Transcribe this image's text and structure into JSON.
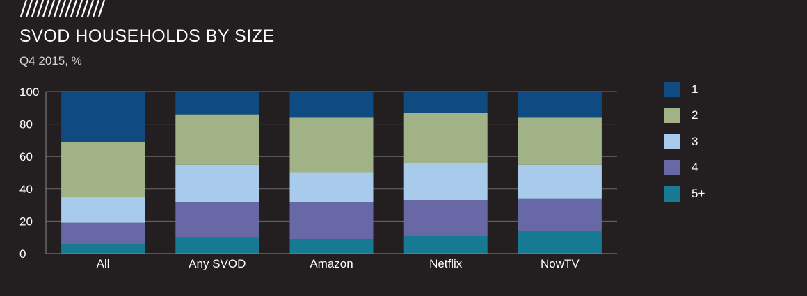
{
  "header": {
    "title": "SVOD HOUSEHOLDS BY SIZE",
    "subtitle": "Q4 2015, %"
  },
  "chart_data": {
    "type": "bar",
    "stacked": true,
    "title": "SVOD HOUSEHOLDS BY SIZE",
    "subtitle": "Q4 2015, %",
    "xlabel": "",
    "ylabel": "",
    "ylim": [
      0,
      100
    ],
    "yticks": [
      0,
      20,
      40,
      60,
      80,
      100
    ],
    "grid": true,
    "legend_position": "right",
    "categories": [
      "All",
      "Any SVOD",
      "Amazon",
      "Netflix",
      "NowTV"
    ],
    "series": [
      {
        "name": "5+",
        "color": "#177a92",
        "values": [
          6,
          10,
          9,
          11,
          14
        ]
      },
      {
        "name": "4",
        "color": "#6868a6",
        "values": [
          13,
          22,
          23,
          22,
          20
        ]
      },
      {
        "name": "3",
        "color": "#a8cbec",
        "values": [
          16,
          23,
          18,
          23,
          21
        ]
      },
      {
        "name": "2",
        "color": "#a1b286",
        "values": [
          34,
          31,
          34,
          31,
          29
        ]
      },
      {
        "name": "1",
        "color": "#0f4a80",
        "values": [
          31,
          14,
          16,
          13,
          16
        ]
      }
    ]
  },
  "legend": {
    "items": [
      {
        "label": "1",
        "color": "#0f4a80"
      },
      {
        "label": "2",
        "color": "#a1b286"
      },
      {
        "label": "3",
        "color": "#a8cbec"
      },
      {
        "label": "4",
        "color": "#6868a6"
      },
      {
        "label": "5+",
        "color": "#177a92"
      }
    ]
  },
  "colors": {
    "background": "#231f20",
    "gridline": "#6b6b6b",
    "axis": "#8a8a8a",
    "text": "#ffffff"
  }
}
